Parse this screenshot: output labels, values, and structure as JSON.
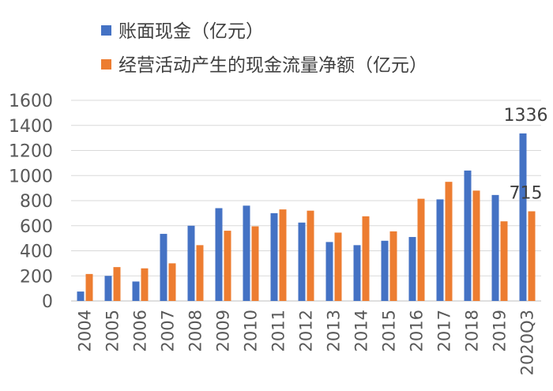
{
  "chart_data": {
    "type": "bar",
    "title": "",
    "xlabel": "",
    "ylabel": "",
    "ylim": [
      0,
      1600
    ],
    "yticks": [
      "0",
      "200",
      "400",
      "600",
      "800",
      "1000",
      "1200",
      "1400",
      "1600"
    ],
    "grid": true,
    "legend_position": "top-left",
    "categories": [
      "2004",
      "2005",
      "2006",
      "2007",
      "2008",
      "2009",
      "2010",
      "2011",
      "2012",
      "2013",
      "2014",
      "2015",
      "2016",
      "2017",
      "2018",
      "2019",
      "2020Q3"
    ],
    "series": [
      {
        "name": "账面现金（亿元）",
        "color": "#4472C4",
        "values": [
          75,
          200,
          155,
          535,
          600,
          740,
          760,
          700,
          625,
          470,
          445,
          480,
          510,
          810,
          1040,
          845,
          1336
        ]
      },
      {
        "name": "经营活动产生的现金流量净额（亿元）",
        "color": "#ED7D31",
        "values": [
          215,
          270,
          260,
          300,
          445,
          560,
          595,
          730,
          720,
          545,
          675,
          555,
          815,
          950,
          880,
          635,
          715
        ]
      }
    ],
    "annotations": [
      {
        "series": 0,
        "category": "2020Q3",
        "text": "1336"
      },
      {
        "series": 1,
        "category": "2020Q3",
        "text": "715"
      }
    ]
  }
}
